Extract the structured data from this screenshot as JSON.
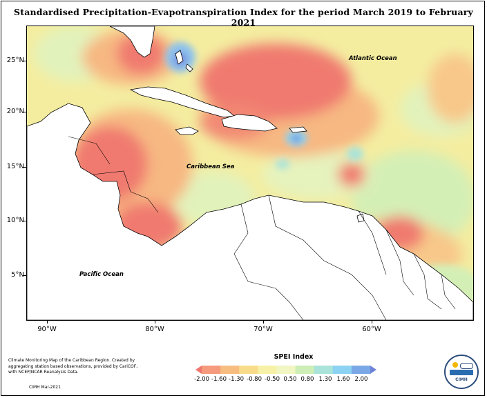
{
  "title": "Standardised Precipitation-Evapotranspiration Index for the period March 2019 to February 2021",
  "axes": {
    "lat_labels": [
      "25°N",
      "20°N",
      "15°N",
      "10°N",
      "5°N"
    ],
    "lon_labels": [
      "90°W",
      "80°W",
      "70°W",
      "60°W"
    ]
  },
  "oceans": {
    "atlantic": "Atlantic Ocean",
    "caribbean": "Caribbean Sea",
    "pacific": "Pacific Ocean"
  },
  "legend": {
    "title": "SPEI Index",
    "ticks": [
      "-2.00",
      "-1.60",
      "-1.30",
      "-0.80",
      "-0.50",
      "0.50",
      "0.80",
      "1.30",
      "1.60",
      "2.00"
    ],
    "colors": [
      "#f0776e",
      "#f59a7c",
      "#f7bd80",
      "#f8dc8a",
      "#f6f1a6",
      "#f1f6c2",
      "#cdeeb6",
      "#a9e3da",
      "#8cd2f2",
      "#7aa8e6",
      "#6f84d8"
    ]
  },
  "credit": {
    "text": "Climate Monitoring Map of the Caribbean Region. Created by aggregating station based observations, provided by CariCOF, with NCEP/NCAR Reanalysis Data.",
    "source": "CIMH Mar-2021"
  },
  "logo": {
    "name": "CIMH"
  }
}
